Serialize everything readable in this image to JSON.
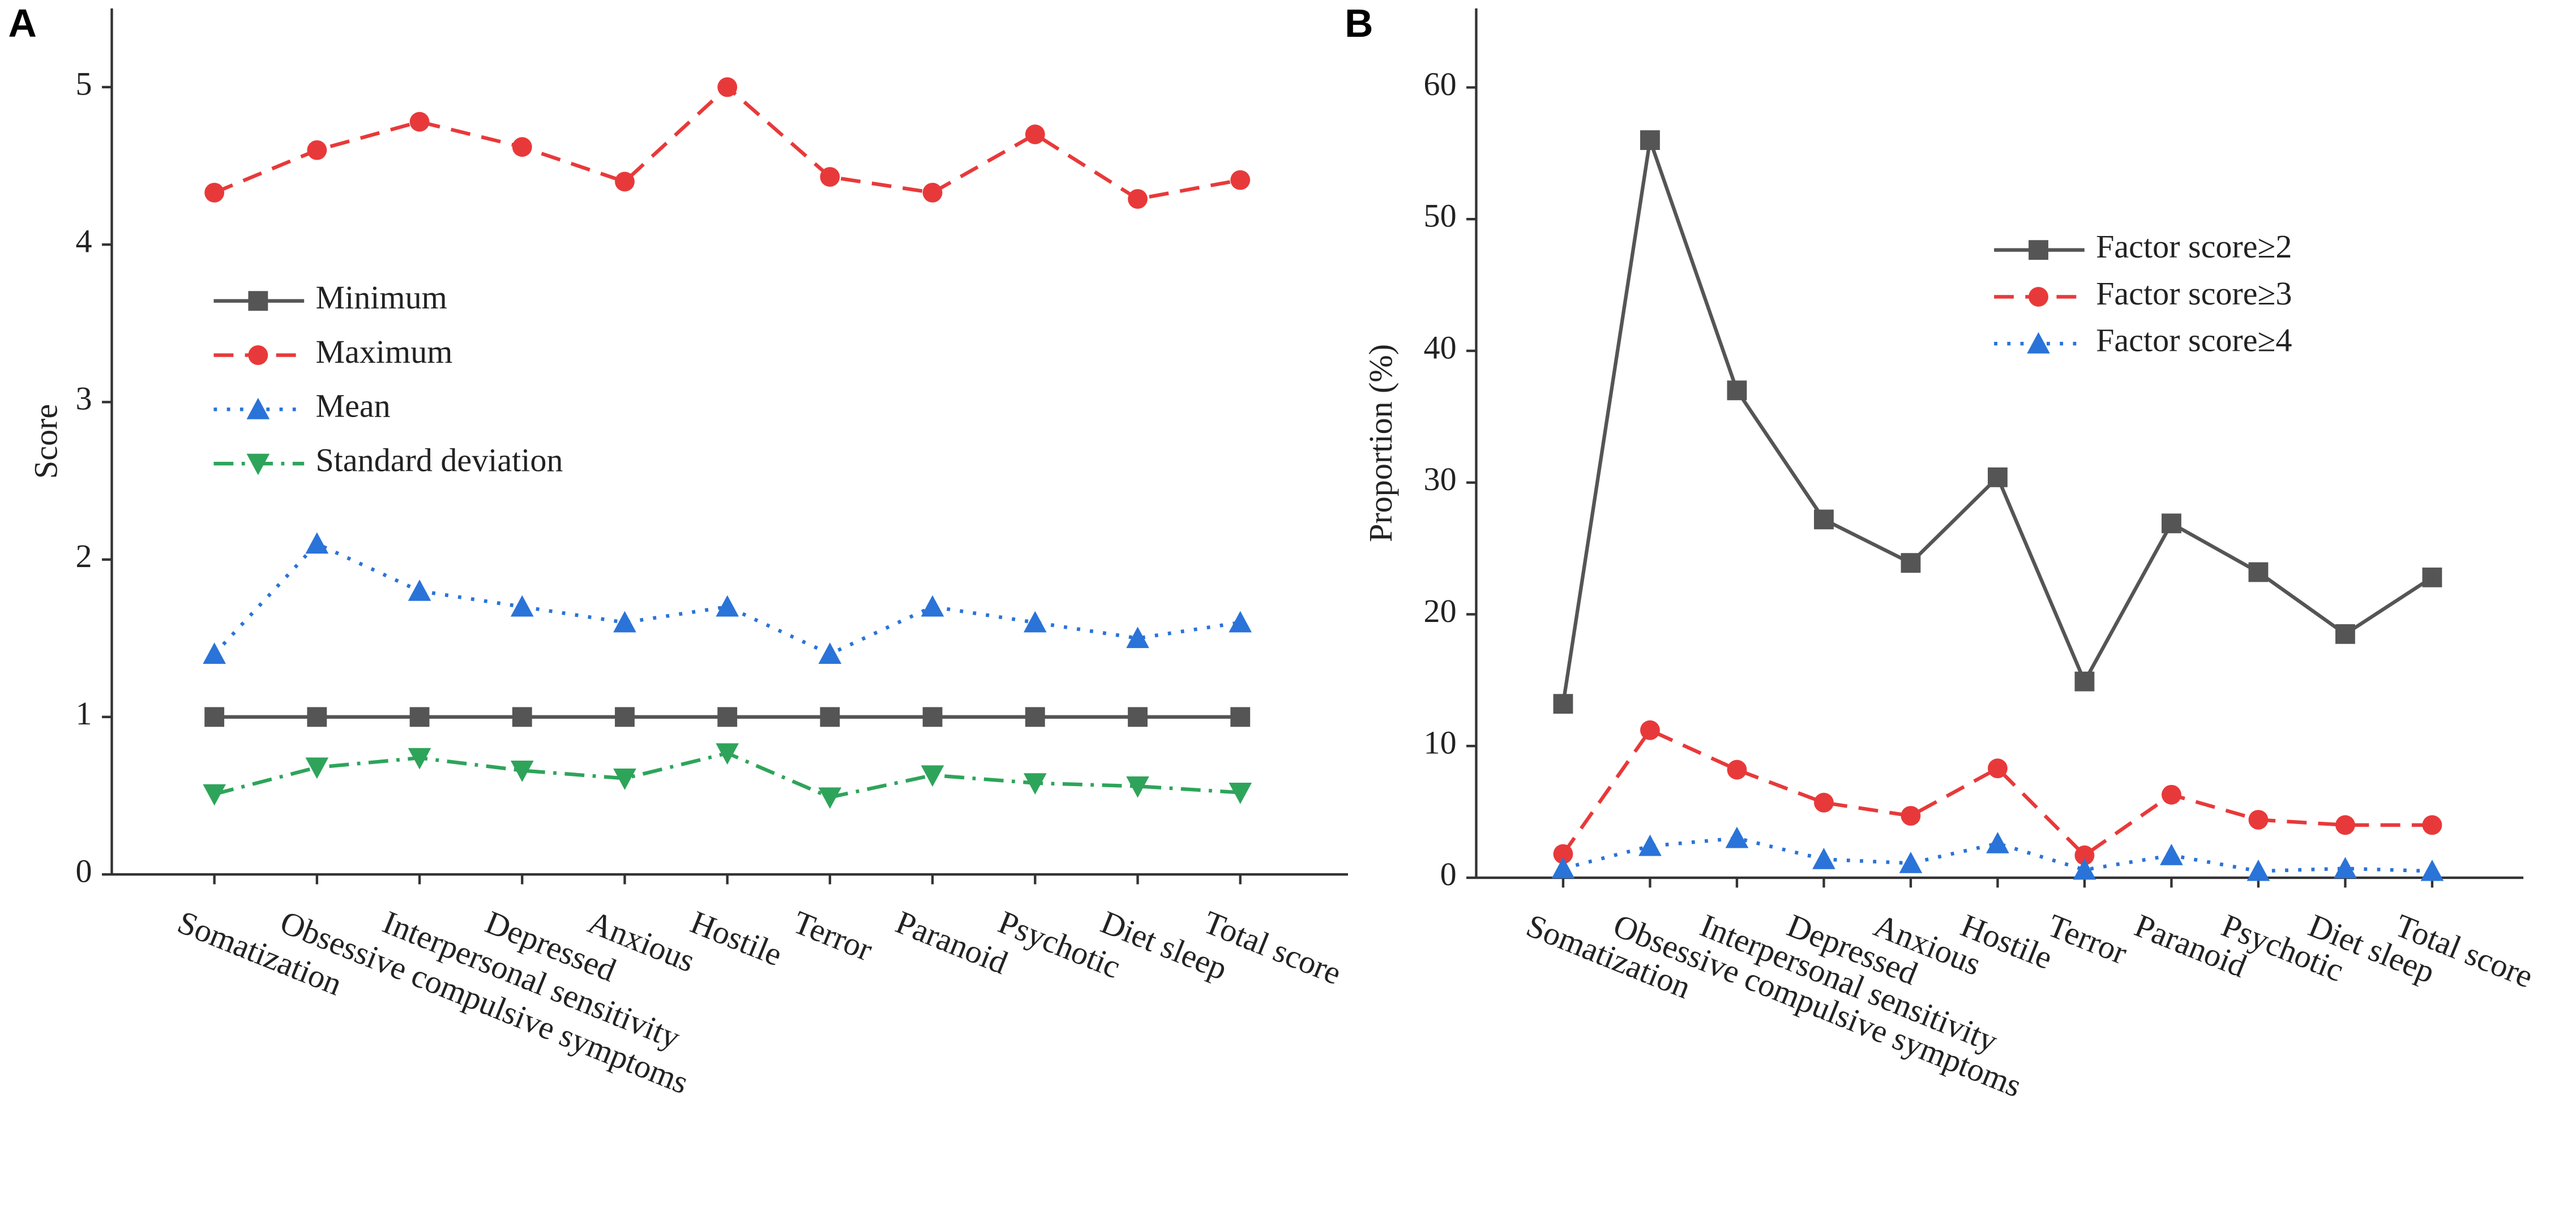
{
  "chart_data": [
    {
      "type": "line",
      "label": "A",
      "ylabel": "Score",
      "categories": [
        "Somatization",
        "Obsessive compulsive symptoms",
        "Interpersonal sensitivity",
        "Depressed",
        "Anxious",
        "Hostile",
        "Terror",
        "Paranoid",
        "Psychotic",
        "Diet sleep",
        "Total score"
      ],
      "ylim": [
        0,
        5.5
      ],
      "yticks": [
        0,
        1,
        2,
        3,
        4,
        5
      ],
      "legend": "center left",
      "series": [
        {
          "name": "Minimum",
          "color": "#555555",
          "marker": "square",
          "dash": "solid",
          "values": [
            1,
            1,
            1,
            1,
            1,
            1,
            1,
            1,
            1,
            1,
            1
          ]
        },
        {
          "name": "Maximum",
          "color": "#e8393a",
          "marker": "circle",
          "dash": "dashed",
          "values": [
            4.33,
            4.6,
            4.78,
            4.62,
            4.4,
            5.0,
            4.43,
            4.33,
            4.7,
            4.29,
            4.41
          ]
        },
        {
          "name": "Mean",
          "color": "#2a73d8",
          "marker": "triangle",
          "dash": "dotted",
          "values": [
            1.4,
            2.1,
            1.8,
            1.7,
            1.6,
            1.7,
            1.4,
            1.7,
            1.6,
            1.5,
            1.6
          ]
        },
        {
          "name": "Standard deviation",
          "color": "#2ea45a",
          "marker": "triangle-down",
          "dash": "dashdot",
          "values": [
            0.51,
            0.68,
            0.74,
            0.66,
            0.61,
            0.77,
            0.49,
            0.63,
            0.58,
            0.56,
            0.52
          ]
        }
      ]
    },
    {
      "type": "line",
      "label": "B",
      "ylabel": "Proportion (%)",
      "categories": [
        "Somatization",
        "Obsessive compulsive symptoms",
        "Interpersonal sensitivity",
        "Depressed",
        "Anxious",
        "Hostile",
        "Terror",
        "Paranoid",
        "Psychotic",
        "Diet sleep",
        "Total score"
      ],
      "ylim": [
        0,
        66
      ],
      "yticks": [
        0,
        10,
        20,
        30,
        40,
        50,
        60
      ],
      "legend": "upper right",
      "series": [
        {
          "name": "Factor score≥2",
          "color": "#555555",
          "marker": "square",
          "dash": "solid",
          "values": [
            13.2,
            56,
            37,
            27.2,
            23.9,
            30.4,
            14.9,
            26.9,
            23.2,
            18.5,
            22.8
          ]
        },
        {
          "name": "Factor score≥3",
          "color": "#e8393a",
          "marker": "circle",
          "dash": "dashed",
          "values": [
            1.8,
            11.2,
            8.2,
            5.7,
            4.7,
            8.3,
            1.7,
            6.3,
            4.4,
            4.0,
            4.0
          ]
        },
        {
          "name": "Factor score≥4",
          "color": "#2a73d8",
          "marker": "triangle",
          "dash": "dotted",
          "values": [
            0.7,
            2.4,
            3.0,
            1.4,
            1.1,
            2.6,
            0.6,
            1.7,
            0.5,
            0.7,
            0.5
          ]
        }
      ]
    }
  ]
}
